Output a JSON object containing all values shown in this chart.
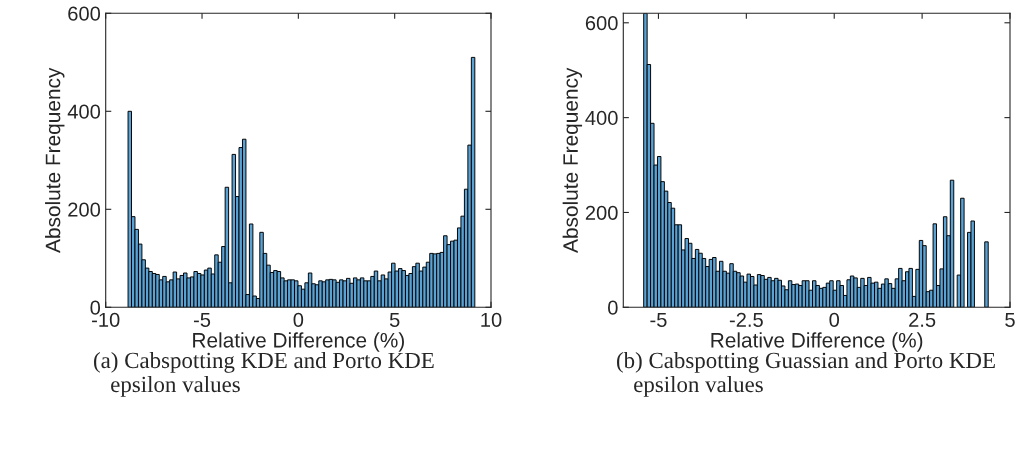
{
  "chart_data": [
    {
      "type": "histogram",
      "xlabel": "Relative Difference (%)",
      "ylabel": "Absolute Frequency",
      "color": "#5aa2d4",
      "bins": [
        -8.84,
        -8.66,
        -8.48,
        -8.3,
        -8.12,
        -7.94,
        -7.76,
        -7.58,
        -7.4,
        -7.22,
        -7.04,
        -6.86,
        -6.68,
        -6.5,
        -6.32,
        -6.14,
        -5.96,
        -5.78,
        -5.6,
        -5.42,
        -5.24,
        -5.06,
        -4.88,
        -4.7,
        -4.52,
        -4.34,
        -4.16,
        -3.98,
        -3.8,
        -3.62,
        -3.44,
        -3.26,
        -3.08,
        -2.9,
        -2.72,
        -2.54,
        -2.36,
        -2.18,
        -2,
        -1.82,
        -1.64,
        -1.46,
        -1.28,
        -1.1,
        -0.92,
        -0.74,
        -0.56,
        -0.38,
        -0.2,
        -0.02,
        0.16,
        0.34,
        0.52,
        0.7,
        0.88,
        1.06,
        1.24,
        1.42,
        1.6,
        1.78,
        1.96,
        2.14,
        2.32,
        2.5,
        2.68,
        2.86,
        3.04,
        3.22,
        3.4,
        3.58,
        3.76,
        3.94,
        4.12,
        4.3,
        4.48,
        4.66,
        4.84,
        5.02,
        5.2,
        5.38,
        5.56,
        5.74,
        5.92,
        6.1,
        6.28,
        6.46,
        6.64,
        6.82,
        7,
        7.18,
        7.36,
        7.54,
        7.72,
        7.9,
        8.08,
        8.26,
        8.44,
        8.62,
        8.8,
        8.98,
        9.16
      ],
      "values": [
        400,
        185,
        159,
        129,
        97,
        80,
        73,
        69,
        67,
        56,
        63,
        52,
        56,
        72,
        58,
        65,
        70,
        60,
        62,
        73,
        69,
        66,
        76,
        80,
        68,
        107,
        92,
        124,
        245,
        50,
        312,
        226,
        326,
        343,
        26,
        170,
        23,
        18,
        153,
        110,
        86,
        71,
        75,
        73,
        60,
        54,
        56,
        56,
        54,
        44,
        37,
        50,
        70,
        48,
        46,
        54,
        52,
        56,
        57,
        56,
        51,
        56,
        54,
        59,
        49,
        60,
        56,
        60,
        54,
        54,
        63,
        74,
        54,
        66,
        58,
        72,
        90,
        74,
        79,
        75,
        65,
        69,
        83,
        90,
        74,
        82,
        92,
        110,
        109,
        110,
        112,
        146,
        128,
        135,
        137,
        162,
        186,
        241,
        331,
        510
      ],
      "xlim": [
        -10,
        10
      ],
      "ylim": [
        0,
        600
      ],
      "xticks": [
        -10,
        -5,
        0,
        5,
        10
      ],
      "yticks": [
        0,
        200,
        400,
        600
      ],
      "grid": false,
      "annotations": [
        "(a) Cabspotting KDE and Porto KDE epsilon values"
      ]
    },
    {
      "type": "histogram",
      "xlabel": "Relative Difference (%)",
      "ylabel": "Absolute Frequency",
      "color": "#5aa2d4",
      "bins": [
        -5.42,
        -5.322,
        -5.224,
        -5.126,
        -5.028,
        -4.93,
        -4.832,
        -4.734,
        -4.636,
        -4.538,
        -4.44,
        -4.342,
        -4.244,
        -4.146,
        -4.048,
        -3.95,
        -3.852,
        -3.754,
        -3.656,
        -3.558,
        -3.46,
        -3.362,
        -3.264,
        -3.166,
        -3.068,
        -2.97,
        -2.872,
        -2.774,
        -2.676,
        -2.578,
        -2.48,
        -2.382,
        -2.284,
        -2.186,
        -2.088,
        -1.99,
        -1.892,
        -1.794,
        -1.696,
        -1.598,
        -1.5,
        -1.402,
        -1.304,
        -1.206,
        -1.108,
        -1.01,
        -0.912,
        -0.814,
        -0.716,
        -0.618,
        -0.52,
        -0.422,
        -0.324,
        -0.226,
        -0.128,
        -0.03,
        0.068,
        0.166,
        0.264,
        0.362,
        0.46,
        0.558,
        0.656,
        0.754,
        0.852,
        0.95,
        1.048,
        1.146,
        1.244,
        1.342,
        1.44,
        1.538,
        1.636,
        1.734,
        1.832,
        1.93,
        2.028,
        2.126,
        2.224,
        2.322,
        2.42,
        2.518,
        2.616,
        2.714,
        2.812,
        2.91,
        3.008,
        3.106,
        3.204,
        3.302,
        3.4,
        3.498,
        3.596,
        3.694,
        3.792,
        3.89,
        3.988,
        4.086,
        4.184,
        4.282,
        4.38
      ],
      "values": [
        620,
        512,
        388,
        300,
        318,
        265,
        245,
        221,
        209,
        174,
        174,
        121,
        145,
        135,
        103,
        122,
        114,
        103,
        86,
        101,
        105,
        76,
        97,
        76,
        72,
        92,
        76,
        73,
        66,
        53,
        70,
        65,
        47,
        69,
        67,
        59,
        63,
        56,
        61,
        57,
        45,
        37,
        56,
        48,
        49,
        46,
        56,
        56,
        36,
        56,
        46,
        40,
        42,
        51,
        56,
        36,
        56,
        46,
        25,
        58,
        66,
        62,
        42,
        61,
        46,
        63,
        51,
        53,
        40,
        49,
        60,
        50,
        40,
        60,
        82,
        56,
        75,
        82,
        23,
        80,
        141,
        130,
        33,
        36,
        176,
        46,
        81,
        191,
        151,
        268,
        0,
        68,
        230,
        0,
        158,
        182,
        0,
        0,
        0,
        138
      ],
      "xlim": [
        -6,
        5
      ],
      "ylim": [
        0,
        620
      ],
      "xticks": [
        -5,
        -2.5,
        0,
        2.5,
        5
      ],
      "yticks": [
        0,
        200,
        400,
        600
      ],
      "grid": false,
      "annotations": [
        "(b) Cabspotting Guassian and Porto KDE epsilon values"
      ]
    }
  ]
}
